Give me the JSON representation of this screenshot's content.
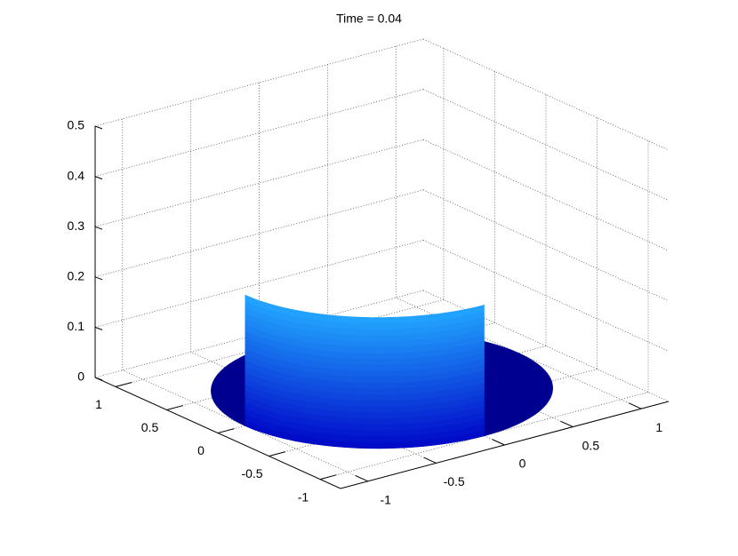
{
  "chart_data": {
    "type": "surface3d",
    "title": "Time = 0.04",
    "xlim": [
      -1.2,
      1.2
    ],
    "xticks": [
      -1,
      -0.5,
      0,
      0.5,
      1
    ],
    "ylim": [
      -1.2,
      1.2
    ],
    "yticks": [
      -1,
      -0.5,
      0,
      0.5,
      1
    ],
    "zlim": [
      0,
      0.5
    ],
    "zticks": [
      0,
      0.1,
      0.2,
      0.3,
      0.4,
      0.5
    ],
    "grid": true,
    "surface": {
      "disk_radius": 1,
      "disk_color": "#000090",
      "wall_radius": 1,
      "wall_theta": [
        180,
        270
      ],
      "wall_height": 0.26,
      "wall_colors": [
        "#0008c8",
        "#22a6ff"
      ]
    }
  }
}
